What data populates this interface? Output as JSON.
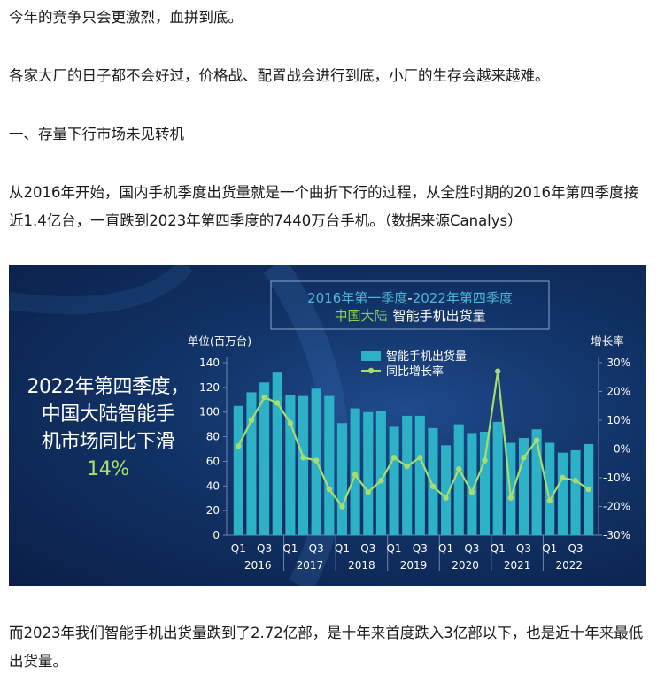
{
  "article": {
    "p1": "今年的竞争只会更激烈，血拼到底。",
    "p2": "各家大厂的日子都不会好过，价格战、配置战会进行到底，小厂的生存会越来越难。",
    "p3": "一、存量下行市场未见转机",
    "p4": "从2016年开始，国内手机季度出货量就是一个曲折下行的过程，从全胜时期的2016年第四季度接近1.4亿台，一直跌到2023年第四季度的7440万台手机。（数据来源Canalys）",
    "p5": "而2023年我们智能手机出货量跌到了2.72亿部，是十年来首度跌入3亿部以下，也是近十年来最低出货量。"
  },
  "infographic": {
    "line1": "2022年第四季度，",
    "line2": "中国大陆智能手",
    "line3": "机市场同比下滑",
    "highlight": "14%"
  },
  "chart_data": {
    "type": "bar+line",
    "title_line1_a": "2016年第一季度",
    "title_line1_b": "-",
    "title_line1_c": "2022年第四季度",
    "title_line2_a": "中国大陆",
    "title_line2_b": "智能手机出货量",
    "y_left_label": "单位(百万台)",
    "y_right_label": "增长率",
    "y_left_ticks": [
      "0",
      "20",
      "40",
      "60",
      "80",
      "100",
      "120",
      "140"
    ],
    "y_right_ticks": [
      "30%",
      "20%",
      "10%",
      "0%",
      "-10%",
      "-20%",
      "-30%"
    ],
    "ylim_left": [
      0,
      140
    ],
    "ylim_right": [
      -30,
      30
    ],
    "x_tick_labels": [
      "Q1",
      "Q3",
      "Q1",
      "Q3",
      "Q1",
      "Q3",
      "Q1",
      "Q3",
      "Q1",
      "Q3",
      "Q1",
      "Q3",
      "Q1",
      "Q3"
    ],
    "year_labels": [
      "2016",
      "2017",
      "2018",
      "2019",
      "2020",
      "2021",
      "2022"
    ],
    "series": [
      {
        "name": "智能手机出货量",
        "kind": "bar",
        "values": [
          105,
          116,
          124,
          132,
          114,
          113,
          119,
          113,
          91,
          103,
          100,
          101,
          88,
          97,
          97,
          87,
          73,
          90,
          83,
          84,
          92,
          75,
          79,
          86,
          75,
          67,
          69,
          74
        ]
      },
      {
        "name": "同比增长率",
        "kind": "line",
        "values": [
          1,
          10,
          18,
          16,
          9,
          -3,
          -4,
          -14,
          -20,
          -9,
          -15,
          -11,
          -3,
          -6,
          -3,
          -13,
          -17,
          -7,
          -15,
          -4,
          27,
          -17,
          -3,
          3,
          -18,
          -10,
          -11,
          -14
        ]
      }
    ],
    "colors": {
      "bar": "#2cb1c6",
      "line": "#a9dc6e",
      "title_main": "#4fb7d6",
      "title_accent": "#8fd14f",
      "axis_text": "#ffffff",
      "grid_axis": "#6c87b3"
    }
  }
}
